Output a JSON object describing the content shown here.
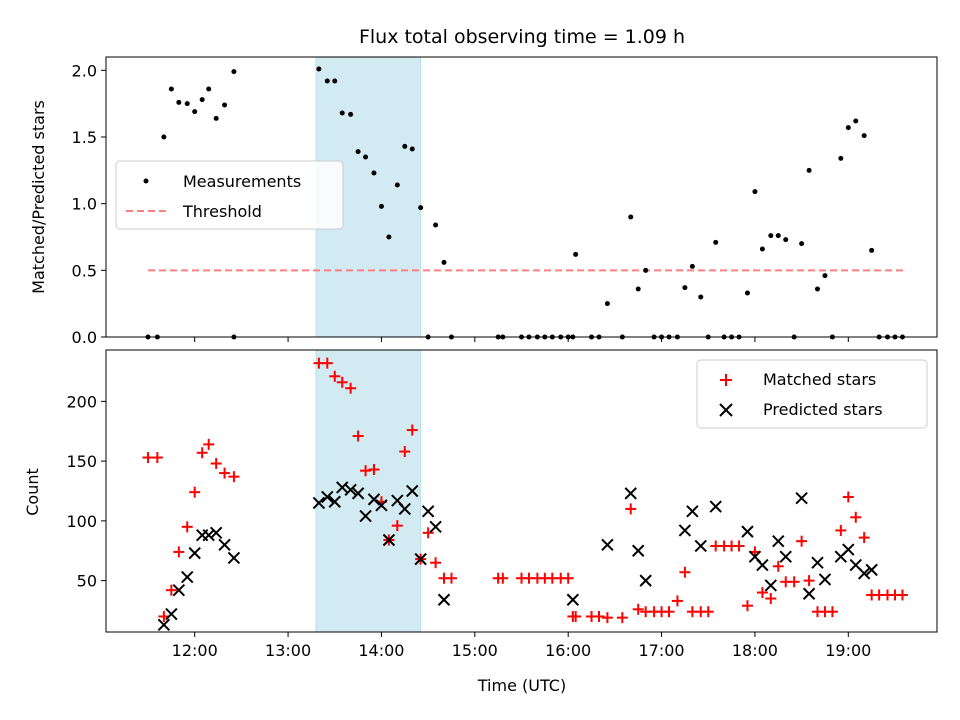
{
  "title": "Flux total observing time = 1.09 h",
  "chart_data": [
    {
      "type": "scatter",
      "ylabel": "Matched/Predicted stars",
      "ylim": [
        0,
        2.1
      ],
      "yticks": [
        0.0,
        0.5,
        1.0,
        1.5,
        2.0
      ],
      "ytick_labels": [
        "0.0",
        "0.5",
        "1.0",
        "1.5",
        "2.0"
      ],
      "legend": {
        "placement": "center-left",
        "entries": [
          "Measurements",
          "Threshold"
        ]
      },
      "threshold": {
        "value": 0.5,
        "x_start": 11.5,
        "x_end": 19.6,
        "color": "#ff7f7f"
      },
      "series": [
        {
          "name": "Measurements",
          "color": "#000000",
          "x": [
            11.5,
            11.6,
            11.67,
            11.75,
            11.83,
            11.92,
            12.0,
            12.08,
            12.15,
            12.23,
            12.32,
            12.42,
            12.42,
            13.33,
            13.42,
            13.5,
            13.58,
            13.67,
            13.75,
            13.83,
            13.92,
            14.0,
            14.08,
            14.17,
            14.25,
            14.33,
            14.42,
            14.5,
            14.58,
            14.67,
            14.75,
            15.25,
            15.3,
            15.5,
            15.58,
            15.67,
            15.75,
            15.83,
            15.92,
            16.0,
            16.05,
            16.08,
            16.25,
            16.33,
            16.42,
            16.58,
            16.67,
            16.75,
            16.83,
            16.92,
            17.0,
            17.08,
            17.17,
            17.25,
            17.33,
            17.42,
            17.5,
            17.58,
            17.67,
            17.75,
            17.83,
            17.92,
            18.0,
            18.08,
            18.17,
            18.25,
            18.33,
            18.42,
            18.5,
            18.58,
            18.67,
            18.75,
            18.83,
            18.92,
            19.0,
            19.08,
            19.17,
            19.25,
            19.33,
            19.42,
            19.5,
            19.58
          ],
          "y": [
            0.0,
            0.0,
            1.5,
            1.86,
            1.76,
            1.75,
            1.69,
            1.78,
            1.86,
            1.64,
            1.74,
            1.99,
            0.0,
            2.01,
            1.92,
            1.92,
            1.68,
            1.67,
            1.39,
            1.35,
            1.23,
            0.98,
            0.75,
            1.14,
            1.43,
            1.41,
            0.97,
            0.0,
            0.84,
            0.56,
            0.0,
            0.0,
            0.0,
            0.0,
            0.0,
            0.0,
            0.0,
            0.0,
            0.0,
            0.0,
            0.0,
            0.62,
            0.0,
            0.0,
            0.25,
            0.0,
            0.9,
            0.36,
            0.5,
            0.0,
            0.0,
            0.0,
            0.0,
            0.37,
            0.53,
            0.3,
            0.0,
            0.71,
            0.0,
            0.0,
            0.0,
            0.33,
            1.09,
            0.66,
            0.76,
            0.76,
            0.73,
            0.0,
            0.7,
            1.25,
            0.36,
            0.46,
            0.0,
            1.34,
            1.57,
            1.62,
            1.51,
            0.65,
            0.0,
            0.0,
            0.0,
            0.0
          ]
        }
      ]
    },
    {
      "type": "scatter",
      "xlabel": "Time (UTC)",
      "ylabel": "Count",
      "ylim": [
        7,
        243
      ],
      "xlim": [
        11.05,
        19.95
      ],
      "xticks": [
        12,
        13,
        14,
        15,
        16,
        17,
        18,
        19
      ],
      "xtick_labels": [
        "12:00",
        "13:00",
        "14:00",
        "15:00",
        "16:00",
        "17:00",
        "18:00",
        "19:00"
      ],
      "yticks": [
        50,
        100,
        150,
        200
      ],
      "ytick_labels": [
        "50",
        "100",
        "150",
        "200"
      ],
      "legend": {
        "placement": "top-right",
        "entries": [
          "Matched stars",
          "Predicted stars"
        ]
      },
      "series": [
        {
          "name": "Matched stars",
          "marker": "+",
          "color": "#ff0000",
          "x": [
            11.5,
            11.6,
            11.67,
            11.75,
            11.83,
            11.92,
            12.0,
            12.08,
            12.15,
            12.23,
            12.32,
            12.42,
            13.33,
            13.42,
            13.5,
            13.58,
            13.67,
            13.75,
            13.83,
            13.92,
            14.0,
            14.08,
            14.17,
            14.25,
            14.33,
            14.42,
            14.5,
            14.58,
            14.67,
            14.75,
            15.25,
            15.3,
            15.5,
            15.58,
            15.67,
            15.75,
            15.83,
            15.92,
            16.0,
            16.05,
            16.08,
            16.25,
            16.33,
            16.42,
            16.58,
            16.67,
            16.75,
            16.83,
            16.92,
            17.0,
            17.08,
            17.17,
            17.25,
            17.33,
            17.42,
            17.5,
            17.58,
            17.67,
            17.75,
            17.83,
            17.92,
            18.0,
            18.08,
            18.17,
            18.25,
            18.33,
            18.42,
            18.5,
            18.58,
            18.67,
            18.75,
            18.83,
            18.92,
            19.0,
            19.08,
            19.17,
            19.25,
            19.33,
            19.42,
            19.5,
            19.58
          ],
          "y": [
            153,
            153,
            20,
            42,
            74,
            95,
            124,
            157,
            164,
            148,
            140,
            137,
            232,
            232,
            221,
            216,
            211,
            171,
            142,
            143,
            116,
            84,
            96,
            158,
            176,
            68,
            90,
            65,
            52,
            52,
            52,
            52,
            52,
            52,
            52,
            52,
            52,
            52,
            52,
            20,
            20,
            20,
            20,
            19,
            19,
            110,
            26,
            24,
            24,
            24,
            24,
            33,
            57,
            24,
            24,
            24,
            79,
            79,
            79,
            79,
            29,
            74,
            40,
            35,
            62,
            49,
            49,
            83,
            50,
            24,
            24,
            24,
            92,
            120,
            103,
            86,
            38,
            38,
            38,
            38,
            38
          ]
        },
        {
          "name": "Predicted stars",
          "marker": "x",
          "color": "#000000",
          "x": [
            11.67,
            11.75,
            11.83,
            11.92,
            12.0,
            12.08,
            12.15,
            12.23,
            12.32,
            12.42,
            13.33,
            13.42,
            13.5,
            13.58,
            13.67,
            13.75,
            13.83,
            13.92,
            14.0,
            14.08,
            14.17,
            14.25,
            14.33,
            14.42,
            14.5,
            14.58,
            14.67,
            16.05,
            16.42,
            16.67,
            16.75,
            16.83,
            17.25,
            17.33,
            17.42,
            17.58,
            17.92,
            18.0,
            18.08,
            18.17,
            18.25,
            18.33,
            18.5,
            18.58,
            18.67,
            18.75,
            18.92,
            19.0,
            19.08,
            19.17,
            19.25
          ],
          "y": [
            13,
            22,
            42,
            53,
            73,
            88,
            88,
            90,
            80,
            69,
            115,
            120,
            116,
            128,
            126,
            123,
            104,
            118,
            113,
            84,
            117,
            110,
            125,
            68,
            108,
            95,
            34,
            34,
            80,
            123,
            75,
            50,
            92,
            108,
            79,
            112,
            91,
            70,
            63,
            46,
            83,
            70,
            119,
            39,
            65,
            51,
            70,
            76,
            63,
            56,
            59
          ]
        }
      ]
    }
  ],
  "shaded_region": {
    "x_start": 13.3,
    "x_end": 14.42,
    "color": "#add8e6"
  }
}
